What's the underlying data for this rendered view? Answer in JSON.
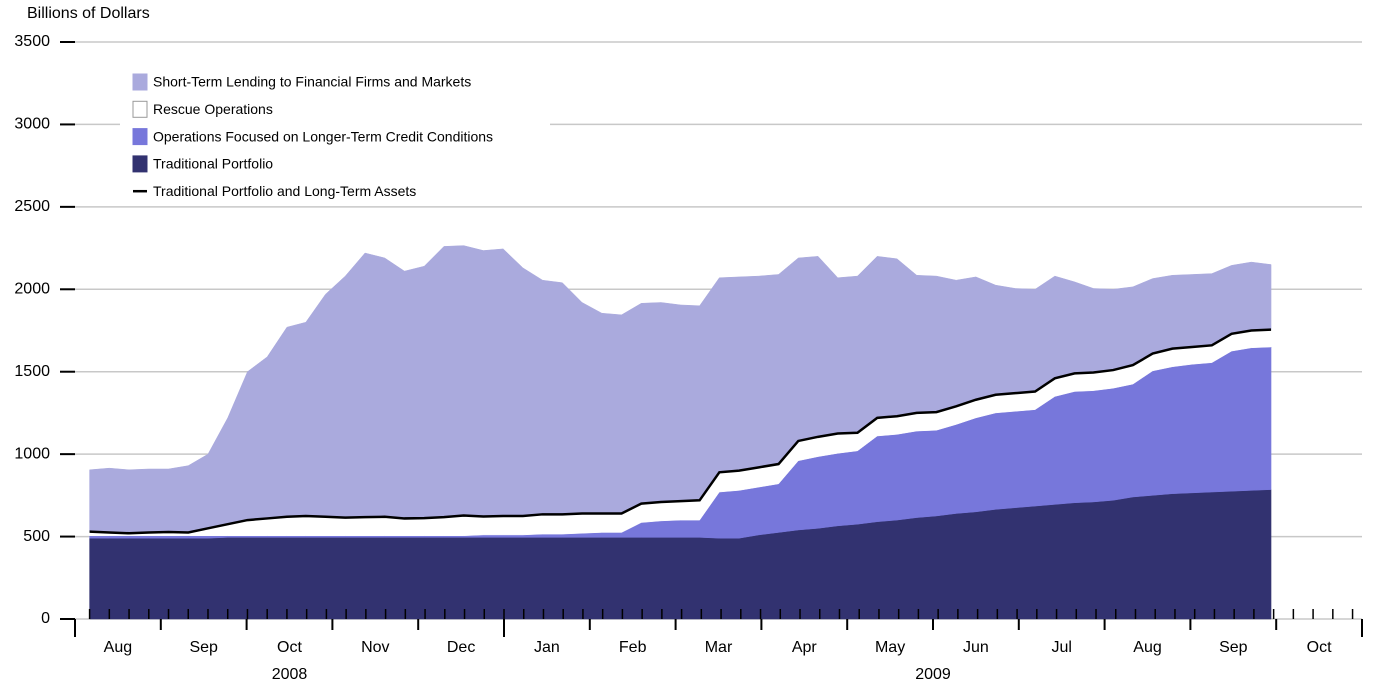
{
  "chart_data": {
    "type": "stacked_area",
    "y_axis_label": "Billions of Dollars",
    "x": [
      0.17,
      0.4,
      0.63,
      0.86,
      1.09,
      1.32,
      1.55,
      1.78,
      2.01,
      2.24,
      2.47,
      2.69,
      2.92,
      3.15,
      3.38,
      3.61,
      3.84,
      4.07,
      4.3,
      4.53,
      4.76,
      4.99,
      5.22,
      5.45,
      5.68,
      5.91,
      6.14,
      6.37,
      6.6,
      6.83,
      7.06,
      7.28,
      7.51,
      7.74,
      7.97,
      8.2,
      8.43,
      8.66,
      8.89,
      9.12,
      9.35,
      9.58,
      9.81,
      10.04,
      10.27,
      10.5,
      10.73,
      10.96,
      11.19,
      11.42,
      11.65,
      11.87,
      12.1,
      12.33,
      12.56,
      12.79,
      13.02,
      13.25,
      13.48,
      13.71,
      13.94
    ],
    "xlim": [
      0,
      15
    ],
    "xticks": [
      {
        "value": 0.5,
        "label": "Aug"
      },
      {
        "value": 1.5,
        "label": "Sep"
      },
      {
        "value": 2.5,
        "label": "Oct"
      },
      {
        "value": 3.5,
        "label": "Nov"
      },
      {
        "value": 4.5,
        "label": "Dec"
      },
      {
        "value": 5.5,
        "label": "Jan"
      },
      {
        "value": 6.5,
        "label": "Feb"
      },
      {
        "value": 7.5,
        "label": "Mar"
      },
      {
        "value": 8.5,
        "label": "Apr"
      },
      {
        "value": 9.5,
        "label": "May"
      },
      {
        "value": 10.5,
        "label": "Jun"
      },
      {
        "value": 11.5,
        "label": "Jul"
      },
      {
        "value": 12.5,
        "label": "Aug"
      },
      {
        "value": 13.5,
        "label": "Sep"
      },
      {
        "value": 14.5,
        "label": "Oct"
      }
    ],
    "year_labels": [
      {
        "value": 2.5,
        "label": "2008"
      },
      {
        "value": 10,
        "label": "2009"
      }
    ],
    "ylim": [
      0,
      3500
    ],
    "yticks": [
      0,
      500,
      1000,
      1500,
      2000,
      2500,
      3000,
      3500
    ],
    "grid": true,
    "series": [
      {
        "name": "Traditional Portfolio",
        "color": "#323270",
        "kind": "area",
        "values": [
          490,
          490,
          490,
          490,
          490,
          490,
          490,
          495,
          495,
          495,
          495,
          495,
          495,
          495,
          495,
          495,
          495,
          495,
          495,
          495,
          495,
          495,
          495,
          495,
          495,
          495,
          495,
          495,
          495,
          495,
          495,
          495,
          490,
          490,
          510,
          525,
          540,
          550,
          565,
          575,
          590,
          600,
          615,
          625,
          640,
          650,
          665,
          675,
          685,
          695,
          705,
          710,
          720,
          740,
          750,
          760,
          765,
          770,
          775,
          780,
          785
        ]
      },
      {
        "name": "Operations Focused on Longer-Term Credit Conditions",
        "color": "#7777db",
        "kind": "area",
        "values": [
          15,
          15,
          15,
          15,
          15,
          15,
          15,
          10,
          10,
          10,
          10,
          10,
          10,
          10,
          10,
          10,
          10,
          10,
          10,
          10,
          15,
          15,
          15,
          20,
          20,
          25,
          30,
          30,
          90,
          100,
          105,
          105,
          280,
          290,
          290,
          295,
          420,
          435,
          440,
          445,
          520,
          520,
          525,
          520,
          540,
          570,
          585,
          585,
          585,
          655,
          675,
          675,
          680,
          685,
          755,
          770,
          780,
          785,
          850,
          865,
          865
        ]
      },
      {
        "name": "Rescue Operations",
        "color": "#ffffff",
        "kind": "area",
        "values": [
          25,
          20,
          15,
          20,
          23,
          20,
          45,
          70,
          95,
          105,
          115,
          120,
          115,
          110,
          113,
          115,
          105,
          107,
          113,
          123,
          112,
          115,
          115,
          120,
          120,
          120,
          115,
          115,
          115,
          115,
          115,
          120,
          120,
          120,
          120,
          120,
          120,
          120,
          120,
          110,
          110,
          110,
          110,
          110,
          110,
          110,
          110,
          110,
          110,
          110,
          110,
          110,
          110,
          115,
          105,
          110,
          105,
          105,
          105,
          105,
          105
        ]
      },
      {
        "name": "Short-Term Lending to Financial Firms and Markets",
        "color": "#aaaadd",
        "kind": "area",
        "values": [
          375,
          390,
          385,
          385,
          382,
          405,
          450,
          645,
          900,
          980,
          1150,
          1175,
          1350,
          1465,
          1602,
          1570,
          1500,
          1528,
          1642,
          1637,
          1613,
          1620,
          1505,
          1420,
          1405,
          1280,
          1215,
          1205,
          1215,
          1210,
          1190,
          1180,
          1180,
          1175,
          1160,
          1150,
          1110,
          1095,
          945,
          950,
          980,
          955,
          835,
          825,
          765,
          745,
          665,
          635,
          620,
          620,
          555,
          510,
          490,
          475,
          455,
          445,
          440,
          435,
          415,
          415,
          395
        ]
      },
      {
        "name": "Traditional Portfolio and Long-Term Assets",
        "color": "#000000",
        "kind": "line",
        "values": [
          530,
          525,
          520,
          525,
          528,
          525,
          550,
          575,
          600,
          610,
          620,
          625,
          620,
          615,
          618,
          620,
          610,
          612,
          618,
          628,
          622,
          625,
          625,
          635,
          635,
          640,
          640,
          640,
          700,
          710,
          715,
          720,
          890,
          900,
          920,
          940,
          1080,
          1105,
          1125,
          1130,
          1220,
          1230,
          1250,
          1255,
          1290,
          1330,
          1360,
          1370,
          1380,
          1460,
          1490,
          1495,
          1510,
          1540,
          1610,
          1640,
          1650,
          1660,
          1730,
          1750,
          1755
        ]
      }
    ]
  }
}
